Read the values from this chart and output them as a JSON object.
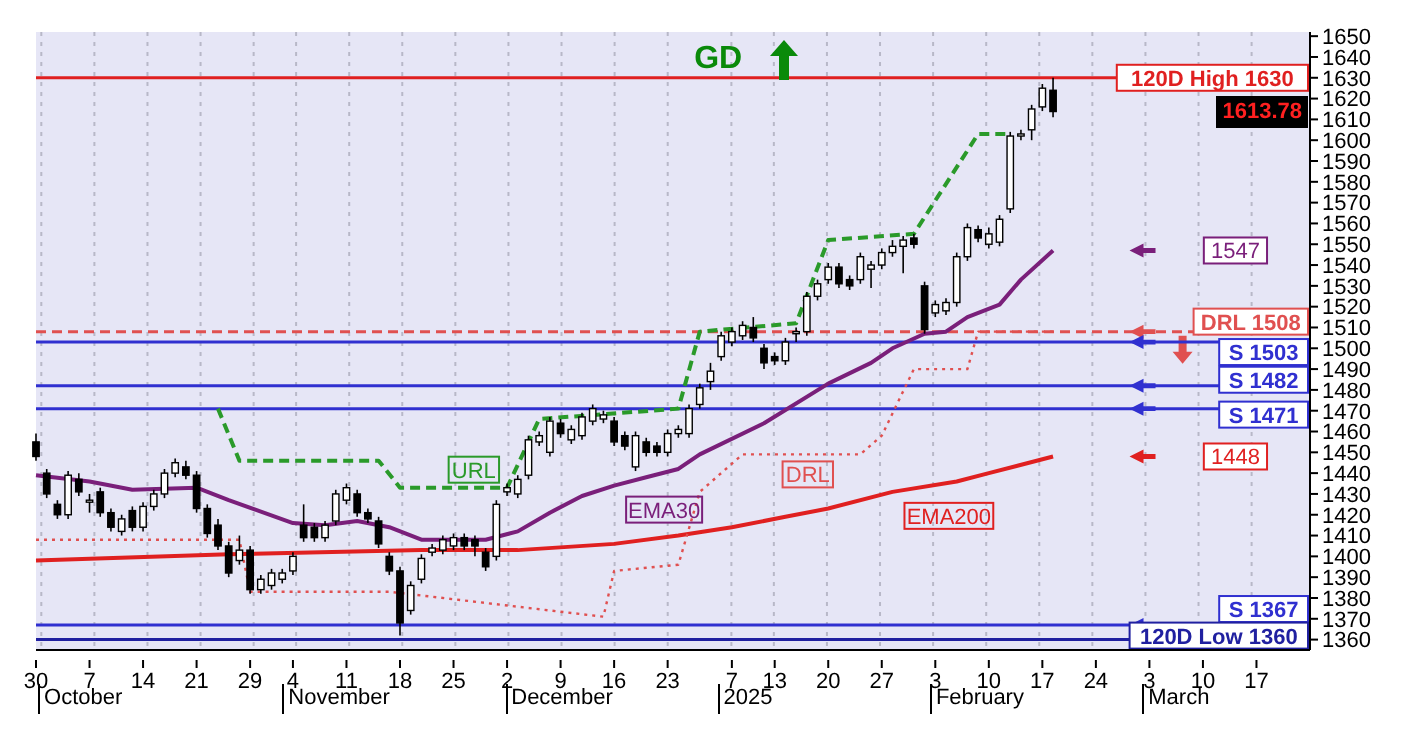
{
  "chart_data": {
    "type": "candlestick",
    "color": "#000000",
    "categories": [
      "30",
      null,
      null,
      null,
      null,
      "7",
      null,
      null,
      null,
      null,
      "14",
      null,
      null,
      null,
      null,
      "21",
      null,
      null,
      null,
      null,
      "29",
      null,
      null,
      null,
      "4",
      null,
      null,
      null,
      null,
      "11",
      null,
      null,
      null,
      null,
      "18",
      null,
      null,
      null,
      null,
      "25",
      null,
      null,
      null,
      null,
      "2",
      null,
      null,
      null,
      null,
      "9",
      null,
      null,
      null,
      null,
      "16",
      null,
      null,
      null,
      null,
      "23",
      null,
      null,
      null,
      null,
      null,
      "7",
      null,
      null,
      null,
      "13",
      null,
      null,
      null,
      null,
      "20",
      null,
      null,
      null,
      null,
      "27",
      null,
      null,
      null,
      null,
      "3",
      null,
      null,
      null,
      null,
      "10",
      null,
      null,
      null,
      null,
      "17",
      null,
      null,
      null,
      null,
      "24",
      null,
      null,
      null,
      null,
      "3",
      null,
      null,
      null,
      null,
      "10",
      null,
      null,
      null,
      null,
      "17",
      null,
      null,
      null,
      null,
      null
    ],
    "ohlc": [
      [
        1455,
        1459,
        1446,
        1448
      ],
      [
        1440,
        1442,
        1428,
        1430
      ],
      [
        1425,
        1427,
        1418,
        1420
      ],
      [
        1420,
        1441,
        1418,
        1439
      ],
      [
        1437,
        1440,
        1429,
        1431
      ],
      [
        1427,
        1430,
        1421,
        1427
      ],
      [
        1431,
        1433,
        1419,
        1421
      ],
      [
        1421,
        1423,
        1412,
        1414
      ],
      [
        1412,
        1420,
        1410,
        1418
      ],
      [
        1422,
        1424,
        1412,
        1414
      ],
      [
        1414,
        1426,
        1412,
        1424
      ],
      [
        1424,
        1432,
        1422,
        1430
      ],
      [
        1430,
        1442,
        1428,
        1440
      ],
      [
        1440,
        1447,
        1438,
        1445
      ],
      [
        1443,
        1446,
        1437,
        1439
      ],
      [
        1439,
        1441,
        1421,
        1423
      ],
      [
        1423,
        1425,
        1409,
        1411
      ],
      [
        1415,
        1418,
        1403,
        1405
      ],
      [
        1405,
        1407,
        1390,
        1392
      ],
      [
        1398,
        1410,
        1396,
        1403
      ],
      [
        1403,
        1405,
        1382,
        1384
      ],
      [
        1384,
        1391,
        1382,
        1389
      ],
      [
        1386,
        1394,
        1384,
        1392
      ],
      [
        1389,
        1394,
        1387,
        1392
      ],
      [
        1393,
        1402,
        1391,
        1400
      ],
      [
        1415,
        1425,
        1407,
        1409
      ],
      [
        1414,
        1416,
        1407,
        1409
      ],
      [
        1409,
        1417,
        1407,
        1415
      ],
      [
        1417,
        1432,
        1415,
        1430
      ],
      [
        1427,
        1435,
        1425,
        1433
      ],
      [
        1430,
        1432,
        1419,
        1421
      ],
      [
        1421,
        1423,
        1416,
        1418
      ],
      [
        1417,
        1419,
        1404,
        1406
      ],
      [
        1400,
        1402,
        1391,
        1393
      ],
      [
        1393,
        1395,
        1362,
        1368
      ],
      [
        1374,
        1388,
        1372,
        1386
      ],
      [
        1389,
        1401,
        1387,
        1399
      ],
      [
        1402,
        1406,
        1400,
        1404
      ],
      [
        1403,
        1410,
        1401,
        1408
      ],
      [
        1405,
        1411,
        1403,
        1409
      ],
      [
        1409,
        1411,
        1403,
        1405
      ],
      [
        1408,
        1410,
        1400,
        1405
      ],
      [
        1402,
        1404,
        1393,
        1395
      ],
      [
        1400,
        1427,
        1398,
        1425
      ],
      [
        1431,
        1435,
        1429,
        1433
      ],
      [
        1430,
        1439,
        1428,
        1437
      ],
      [
        1439,
        1458,
        1437,
        1456
      ],
      [
        1455,
        1460,
        1453,
        1458
      ],
      [
        1450,
        1467,
        1448,
        1465
      ],
      [
        1464,
        1466,
        1457,
        1459
      ],
      [
        1456,
        1463,
        1454,
        1461
      ],
      [
        1458,
        1469,
        1456,
        1467
      ],
      [
        1465,
        1473,
        1463,
        1471
      ],
      [
        1466,
        1470,
        1464,
        1468
      ],
      [
        1465,
        1467,
        1453,
        1455
      ],
      [
        1458,
        1460,
        1451,
        1453
      ],
      [
        1443,
        1460,
        1441,
        1458
      ],
      [
        1455,
        1457,
        1448,
        1450
      ],
      [
        1453,
        1455,
        1448,
        1450
      ],
      [
        1450,
        1461,
        1448,
        1459
      ],
      [
        1459,
        1463,
        1457,
        1461
      ],
      [
        1459,
        1473,
        1457,
        1471
      ],
      [
        1473,
        1483,
        1471,
        1481
      ],
      [
        1484,
        1493,
        1480,
        1489
      ],
      [
        1496,
        1508,
        1494,
        1506
      ],
      [
        1503,
        1510,
        1501,
        1508
      ],
      [
        1506,
        1513,
        1504,
        1511
      ],
      [
        1510,
        1515,
        1503,
        1505
      ],
      [
        1500,
        1502,
        1490,
        1493
      ],
      [
        1496,
        1498,
        1492,
        1494
      ],
      [
        1494,
        1505,
        1492,
        1503
      ],
      [
        1507,
        1510,
        1503,
        1508
      ],
      [
        1508,
        1527,
        1506,
        1525
      ],
      [
        1525,
        1533,
        1523,
        1531
      ],
      [
        1533,
        1541,
        1531,
        1539
      ],
      [
        1539,
        1541,
        1529,
        1531
      ],
      [
        1533,
        1535,
        1528,
        1530
      ],
      [
        1533,
        1546,
        1531,
        1544
      ],
      [
        1538,
        1542,
        1529,
        1540
      ],
      [
        1540,
        1548,
        1538,
        1546
      ],
      [
        1546,
        1552,
        1544,
        1549
      ],
      [
        1549,
        1554,
        1536,
        1552
      ],
      [
        1553,
        1555,
        1548,
        1550
      ],
      [
        1530,
        1532,
        1507,
        1509
      ],
      [
        1517,
        1523,
        1515,
        1521
      ],
      [
        1518,
        1524,
        1516,
        1522
      ],
      [
        1522,
        1546,
        1520,
        1544
      ],
      [
        1544,
        1560,
        1542,
        1558
      ],
      [
        1557,
        1559,
        1551,
        1553
      ],
      [
        1550,
        1558,
        1548,
        1555
      ],
      [
        1551,
        1564,
        1549,
        1562
      ],
      [
        1567,
        1604,
        1565,
        1602
      ],
      [
        1602,
        1605,
        1600,
        1603
      ],
      [
        1605,
        1617,
        1600,
        1615
      ],
      [
        1616,
        1627,
        1614,
        1625
      ],
      [
        1624,
        1630,
        1611,
        1613.78
      ],
      null,
      null,
      null,
      null,
      null,
      null,
      null,
      null,
      null,
      null,
      null,
      null,
      null,
      null,
      null,
      null,
      null,
      null,
      null,
      null,
      null,
      null,
      null,
      null
    ],
    "series": [
      {
        "type": "line",
        "name": "EMA30",
        "color": "#7a1f7a",
        "line_style": "solid",
        "values": [
          1439,
          null,
          null,
          null,
          null,
          1436,
          null,
          null,
          null,
          1432,
          null,
          null,
          null,
          null,
          null,
          1433,
          null,
          null,
          1427,
          null,
          null,
          null,
          null,
          null,
          1416,
          null,
          null,
          1415,
          null,
          null,
          1417,
          null,
          null,
          1414,
          null,
          null,
          1408,
          null,
          null,
          1408,
          null,
          null,
          1408,
          null,
          null,
          1412,
          null,
          null,
          1421,
          null,
          null,
          1429,
          null,
          null,
          1434,
          null,
          null,
          1438,
          null,
          null,
          1442,
          null,
          1449,
          null,
          null,
          null,
          null,
          null,
          1464,
          null,
          null,
          null,
          null,
          null,
          1483,
          null,
          null,
          null,
          1493,
          null,
          1500,
          null,
          null,
          1507,
          null,
          1508,
          null,
          1515,
          null,
          null,
          1521,
          null,
          1533,
          null,
          null,
          1547,
          null,
          null,
          null,
          null,
          null,
          null,
          null,
          null,
          null,
          null,
          null,
          null,
          null,
          null,
          null,
          null,
          null,
          null,
          null,
          null,
          null,
          null,
          null,
          null
        ]
      },
      {
        "type": "line",
        "name": "EMA200",
        "color": "#e02020",
        "line_style": "solid",
        "values": [
          1398,
          null,
          null,
          null,
          null,
          null,
          null,
          null,
          null,
          null,
          null,
          null,
          null,
          null,
          null,
          null,
          null,
          null,
          1401,
          null,
          null,
          null,
          null,
          null,
          null,
          null,
          null,
          null,
          null,
          null,
          null,
          null,
          null,
          null,
          null,
          null,
          1403,
          null,
          null,
          null,
          null,
          null,
          null,
          null,
          null,
          1403,
          null,
          null,
          null,
          null,
          null,
          null,
          null,
          null,
          1406,
          null,
          null,
          null,
          null,
          null,
          1410,
          null,
          null,
          null,
          null,
          1414,
          null,
          null,
          null,
          null,
          1419,
          null,
          null,
          null,
          1423,
          null,
          null,
          null,
          null,
          null,
          1431,
          null,
          null,
          null,
          null,
          null,
          1436,
          null,
          null,
          1440,
          null,
          null,
          null,
          null,
          null,
          1448,
          null,
          null,
          null,
          null,
          null,
          null,
          null,
          null,
          null,
          null,
          null,
          null,
          null,
          null,
          null,
          null,
          null,
          null,
          null,
          null,
          null,
          null,
          null,
          null
        ]
      },
      {
        "type": "line",
        "name": "URL",
        "color": "#2a9a2a",
        "line_style": "dashed",
        "values": [
          null,
          null,
          null,
          null,
          null,
          null,
          null,
          null,
          null,
          null,
          null,
          null,
          null,
          null,
          null,
          null,
          null,
          1471,
          null,
          1446,
          null,
          null,
          null,
          null,
          null,
          null,
          null,
          null,
          null,
          null,
          null,
          null,
          1446,
          null,
          1433,
          null,
          null,
          null,
          null,
          null,
          null,
          null,
          null,
          null,
          1433,
          null,
          null,
          1466,
          null,
          null,
          null,
          null,
          null,
          null,
          null,
          null,
          null,
          null,
          null,
          null,
          1471,
          null,
          1508,
          null,
          null,
          null,
          null,
          null,
          null,
          null,
          null,
          1512,
          null,
          null,
          1552,
          null,
          null,
          null,
          null,
          null,
          null,
          null,
          1555,
          null,
          null,
          null,
          null,
          null,
          1603,
          null,
          null,
          1603,
          null,
          null,
          null,
          null,
          null,
          null,
          null,
          null,
          null,
          null,
          null,
          null,
          null,
          null,
          null,
          null,
          null,
          null,
          null,
          null,
          null,
          null,
          null,
          null,
          null,
          null,
          null,
          null
        ]
      },
      {
        "type": "line",
        "name": "DRL",
        "color": "#e05050",
        "line_style": "dotted",
        "values": [
          1408,
          null,
          null,
          null,
          null,
          null,
          null,
          null,
          null,
          null,
          null,
          null,
          null,
          null,
          null,
          null,
          null,
          null,
          null,
          1408,
          1383,
          null,
          null,
          null,
          null,
          null,
          null,
          null,
          null,
          null,
          null,
          null,
          null,
          1383,
          null,
          null,
          null,
          null,
          null,
          null,
          null,
          null,
          null,
          null,
          null,
          null,
          null,
          null,
          null,
          null,
          null,
          null,
          null,
          1371,
          1393,
          null,
          null,
          null,
          null,
          null,
          1396,
          null,
          1431,
          null,
          null,
          null,
          1449,
          null,
          null,
          null,
          null,
          null,
          null,
          null,
          null,
          null,
          null,
          1449,
          null,
          1458,
          null,
          null,
          1490,
          null,
          null,
          null,
          null,
          1490,
          1508,
          null,
          null,
          null,
          null,
          null,
          null,
          1508,
          null,
          null,
          null,
          null,
          null,
          null,
          null,
          null,
          null,
          null,
          null,
          null,
          null,
          null,
          null,
          null,
          null,
          null,
          null,
          null,
          null,
          null,
          null,
          null
        ]
      }
    ],
    "ylim": [
      1355,
      1652
    ],
    "yticks": [
      1360,
      1370,
      1380,
      1390,
      1400,
      1410,
      1420,
      1430,
      1440,
      1450,
      1460,
      1470,
      1480,
      1490,
      1500,
      1510,
      1520,
      1530,
      1540,
      1550,
      1560,
      1570,
      1580,
      1590,
      1600,
      1610,
      1620,
      1630,
      1640,
      1650
    ],
    "grid": "x",
    "ref_lines": [
      {
        "axis": "y",
        "value": 1630,
        "label": "120D High 1630",
        "color": "#e02020"
      },
      {
        "axis": "y",
        "value": 1508,
        "label": "DRL 1508",
        "color": "#e05050",
        "line_style": "dashed"
      },
      {
        "axis": "y",
        "value": 1503,
        "label": "S 1503",
        "color": "#3030d0"
      },
      {
        "axis": "y",
        "value": 1482,
        "label": "S 1482",
        "color": "#3030d0"
      },
      {
        "axis": "y",
        "value": 1471,
        "label": "S 1471",
        "color": "#3030d0"
      },
      {
        "axis": "y",
        "value": 1367,
        "label": "S 1367",
        "color": "#3030d0"
      },
      {
        "axis": "y",
        "value": 1360,
        "label": "120D Low 1360",
        "color": "#2020a0"
      }
    ],
    "annotations": [
      "GD",
      "October",
      "November",
      "December",
      "2025",
      "February",
      "March",
      {
        "text": "1547",
        "y": 1547
      },
      {
        "text": "1448",
        "y": 1448
      },
      "1613.78"
    ]
  }
}
